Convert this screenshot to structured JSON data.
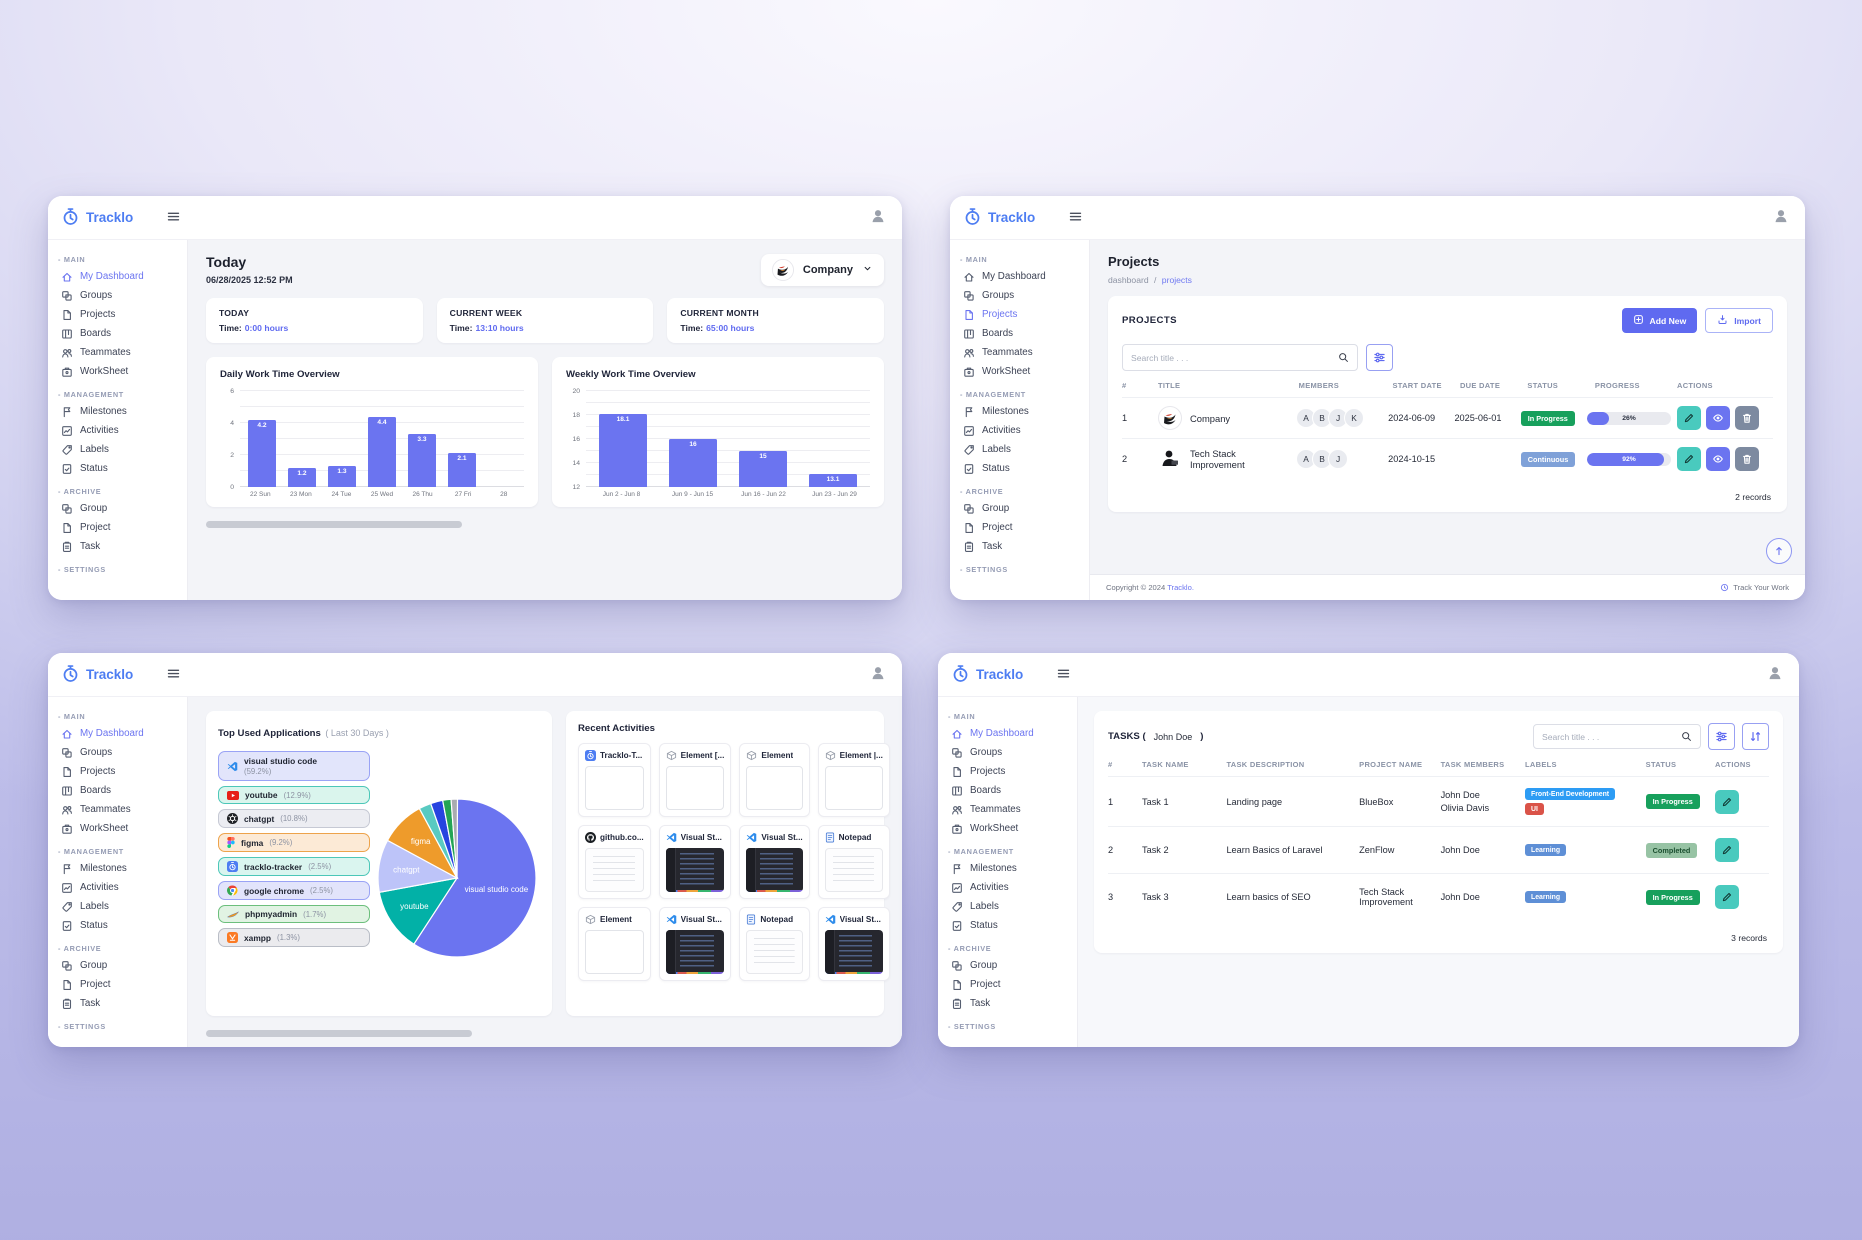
{
  "brand": {
    "name": "Tracklo",
    "logo_color": "#4d7df2",
    "accent": "#6b74f0"
  },
  "sidebar": {
    "sections": [
      {
        "label": "MAIN",
        "items": [
          {
            "label": "My Dashboard",
            "icon": "home"
          },
          {
            "label": "Groups",
            "icon": "copy"
          },
          {
            "label": "Projects",
            "icon": "file"
          },
          {
            "label": "Boards",
            "icon": "kanban"
          },
          {
            "label": "Teammates",
            "icon": "people"
          },
          {
            "label": "WorkSheet",
            "icon": "case"
          }
        ]
      },
      {
        "label": "MANAGEMENT",
        "items": [
          {
            "label": "Milestones",
            "icon": "flag"
          },
          {
            "label": "Activities",
            "icon": "activity"
          },
          {
            "label": "Labels",
            "icon": "tag"
          },
          {
            "label": "Status",
            "icon": "filecheck"
          }
        ]
      },
      {
        "label": "ARCHIVE",
        "items": [
          {
            "label": "Group",
            "icon": "copy"
          },
          {
            "label": "Project",
            "icon": "file"
          },
          {
            "label": "Task",
            "icon": "clipboard"
          }
        ]
      },
      {
        "label": "SETTINGS",
        "items": []
      }
    ]
  },
  "dashboard_window": {
    "active_nav": "My Dashboard",
    "title": "Today",
    "datetime": "06/28/2025 12:52 PM",
    "company_selector": "Company",
    "stats": [
      {
        "label": "TODAY",
        "time_label": "Time:",
        "value": "0:00 hours"
      },
      {
        "label": "CURRENT WEEK",
        "time_label": "Time:",
        "value": "13:10 hours"
      },
      {
        "label": "CURRENT MONTH",
        "time_label": "Time:",
        "value": "65:00 hours"
      }
    ]
  },
  "projects_window": {
    "active_nav": "Projects",
    "page_title": "Projects",
    "breadcrumb": {
      "parent": "dashboard",
      "separator": "/",
      "current": "projects"
    },
    "card_title": "PROJECTS",
    "add_button": "Add New",
    "import_button": "Import",
    "search_placeholder": "Search title . . .",
    "columns": [
      "#",
      "TITLE",
      "MEMBERS",
      "START DATE",
      "DUE DATE",
      "STATUS",
      "PROGRESS",
      "ACTIONS"
    ],
    "actions": [
      "edit",
      "view",
      "delete"
    ],
    "rows": [
      {
        "num": "1",
        "avatar": "eagle",
        "title": "Company",
        "members": [
          "A",
          "B",
          "J",
          "K"
        ],
        "start_date": "2024-06-09",
        "due_date": "2025-06-01",
        "status": {
          "text": "In Progress",
          "bg": "#17a05c",
          "color": "#ffffff"
        },
        "progress_pct": 26,
        "progress_label": "26%"
      },
      {
        "num": "2",
        "avatar": "person",
        "title": "Tech Stack Improvement",
        "members": [
          "A",
          "B",
          "J"
        ],
        "start_date": "2024-10-15",
        "due_date": "",
        "status": {
          "text": "Continuous",
          "bg": "#7fa1d8",
          "color": "#ffffff"
        },
        "progress_pct": 92,
        "progress_label": "92%"
      }
    ],
    "records": "2 records",
    "footer": {
      "copyright_prefix": "Copyright © 2024",
      "brand": "Tracklo.",
      "right": "Track Your Work"
    }
  },
  "apps_window": {
    "active_nav": "My Dashboard",
    "apps_title": "Top Used Applications",
    "apps_subtitle": "( Last 30 Days )",
    "activities_title": "Recent Activities",
    "apps": [
      {
        "name": "visual studio code",
        "pct": "(59.2%)",
        "icon": "vscode",
        "bg": "#e2e5fb",
        "border": "#9aa3f5",
        "two_line": true
      },
      {
        "name": "youtube",
        "pct": "(12.9%)",
        "icon": "youtube",
        "bg": "#daf5ed",
        "border": "#4cc7b8"
      },
      {
        "name": "chatgpt",
        "pct": "(10.8%)",
        "icon": "chatgpt",
        "bg": "#ecedf2",
        "border": "#c6c9d4"
      },
      {
        "name": "figma",
        "pct": "(9.2%)",
        "icon": "figma",
        "bg": "#fcead6",
        "border": "#eda34b"
      },
      {
        "name": "tracklo-tracker",
        "pct": "(2.5%)",
        "icon": "tracklo",
        "bg": "#daf5ef",
        "border": "#4cc7b8"
      },
      {
        "name": "google chrome",
        "pct": "(2.5%)",
        "icon": "chrome",
        "bg": "#e2e4fb",
        "border": "#9aa3f5"
      },
      {
        "name": "phpmyadmin",
        "pct": "(1.7%)",
        "icon": "phpmyadmin",
        "bg": "#e1f3e3",
        "border": "#6cbf7c"
      },
      {
        "name": "xampp",
        "pct": "(1.3%)",
        "icon": "xampp",
        "bg": "#ebebee",
        "border": "#b9bdc6"
      }
    ],
    "activities": [
      {
        "name": "Tracklo-T...",
        "icon": "tracklo",
        "thumb": "empty"
      },
      {
        "name": "Element [...",
        "icon": "element",
        "thumb": "empty"
      },
      {
        "name": "Element",
        "icon": "element",
        "thumb": "empty"
      },
      {
        "name": "Element |...",
        "icon": "element",
        "thumb": "empty"
      },
      {
        "name": "github.co...",
        "icon": "github",
        "thumb": "light"
      },
      {
        "name": "Visual St...",
        "icon": "vscode",
        "thumb": "dark"
      },
      {
        "name": "Visual St...",
        "icon": "vscode",
        "thumb": "dark"
      },
      {
        "name": "Notepad",
        "icon": "notepad",
        "thumb": "light"
      },
      {
        "name": "Element",
        "icon": "element",
        "thumb": "empty"
      },
      {
        "name": "Visual St...",
        "icon": "vscode",
        "thumb": "dark"
      },
      {
        "name": "Notepad",
        "icon": "notepad",
        "thumb": "light"
      },
      {
        "name": "Visual St...",
        "icon": "vscode",
        "thumb": "dark"
      }
    ]
  },
  "tasks_window": {
    "active_nav": "My Dashboard",
    "title_prefix": "TASKS (",
    "owner": "John Doe",
    "title_suffix": ")",
    "search_placeholder": "Search title . . .",
    "columns": [
      "#",
      "TASK NAME",
      "TASK DESCRIPTION",
      "PROJECT NAME",
      "TASK MEMBERS",
      "LABELS",
      "STATUS",
      "ACTIONS"
    ],
    "actions": [
      "edit"
    ],
    "rows": [
      {
        "num": "1",
        "name": "Task 1",
        "description": "Landing page",
        "project": "BlueBox",
        "members": [
          "John Doe",
          "Olivia Davis"
        ],
        "labels": [
          {
            "text": "Front-End Development",
            "bg": "#2d9cf4"
          },
          {
            "text": "UI",
            "bg": "#da5348"
          }
        ],
        "status": {
          "text": "In Progress",
          "bg": "#17a05c",
          "color": "#ffffff"
        }
      },
      {
        "num": "2",
        "name": "Task 2",
        "description": "Learn Basics of Laravel",
        "project": "ZenFlow",
        "members": [
          "John Doe"
        ],
        "labels": [
          {
            "text": "Learning",
            "bg": "#5e8fd6"
          }
        ],
        "status": {
          "text": "Completed",
          "bg": "#97c3a4",
          "color": "#1c4f30"
        }
      },
      {
        "num": "3",
        "name": "Task 3",
        "description": "Learn basics of SEO",
        "project": "Tech Stack Improvement",
        "members": [
          "John Doe"
        ],
        "labels": [
          {
            "text": "Learning",
            "bg": "#5e8fd6"
          }
        ],
        "status": {
          "text": "In Progress",
          "bg": "#17a05c",
          "color": "#ffffff"
        }
      }
    ],
    "records": "3 records"
  },
  "chart_data": [
    {
      "type": "bar",
      "title": "Daily Work Time Overview",
      "categories": [
        "22 Sun",
        "23 Mon",
        "24 Tue",
        "25 Wed",
        "26 Thu",
        "27 Fri",
        "28"
      ],
      "values": [
        4.2,
        1.2,
        1.3,
        4.4,
        3.3,
        2.1,
        0
      ],
      "ylim": [
        0,
        6
      ],
      "yticks": [
        0,
        2,
        4,
        6
      ],
      "bar_color": "#6b74f0"
    },
    {
      "type": "bar",
      "title": "Weekly Work Time Overview",
      "categories": [
        "Jun 2 - Jun 8",
        "Jun 9 - Jun 15",
        "Jun 16 - Jun 22",
        "Jun 23 - Jun 29"
      ],
      "values": [
        18.1,
        16,
        15,
        13.1
      ],
      "ylim": [
        12,
        20
      ],
      "yticks": [
        12,
        14,
        16,
        18,
        20
      ],
      "bar_color": "#6b74f0"
    },
    {
      "type": "pie",
      "title": "Top Used Applications ( Last 30 Days )",
      "slices": [
        {
          "name": "visual studio code",
          "value": 59.2,
          "color": "#6b74f0",
          "show_label": true
        },
        {
          "name": "youtube",
          "value": 12.9,
          "color": "#02b1a7",
          "show_label": true
        },
        {
          "name": "chatgpt",
          "value": 10.8,
          "color": "#bdc4f9",
          "show_label": true
        },
        {
          "name": "figma",
          "value": 9.2,
          "color": "#ee9b2b",
          "show_label": true
        },
        {
          "name": "tracklo-tracker",
          "value": 2.5,
          "color": "#59cac1",
          "show_label": false
        },
        {
          "name": "google chrome",
          "value": 2.5,
          "color": "#2744e0",
          "show_label": false
        },
        {
          "name": "phpmyadmin",
          "value": 1.7,
          "color": "#24a455",
          "show_label": false
        },
        {
          "name": "xampp",
          "value": 1.3,
          "color": "#a9abb0",
          "show_label": false
        }
      ]
    }
  ]
}
